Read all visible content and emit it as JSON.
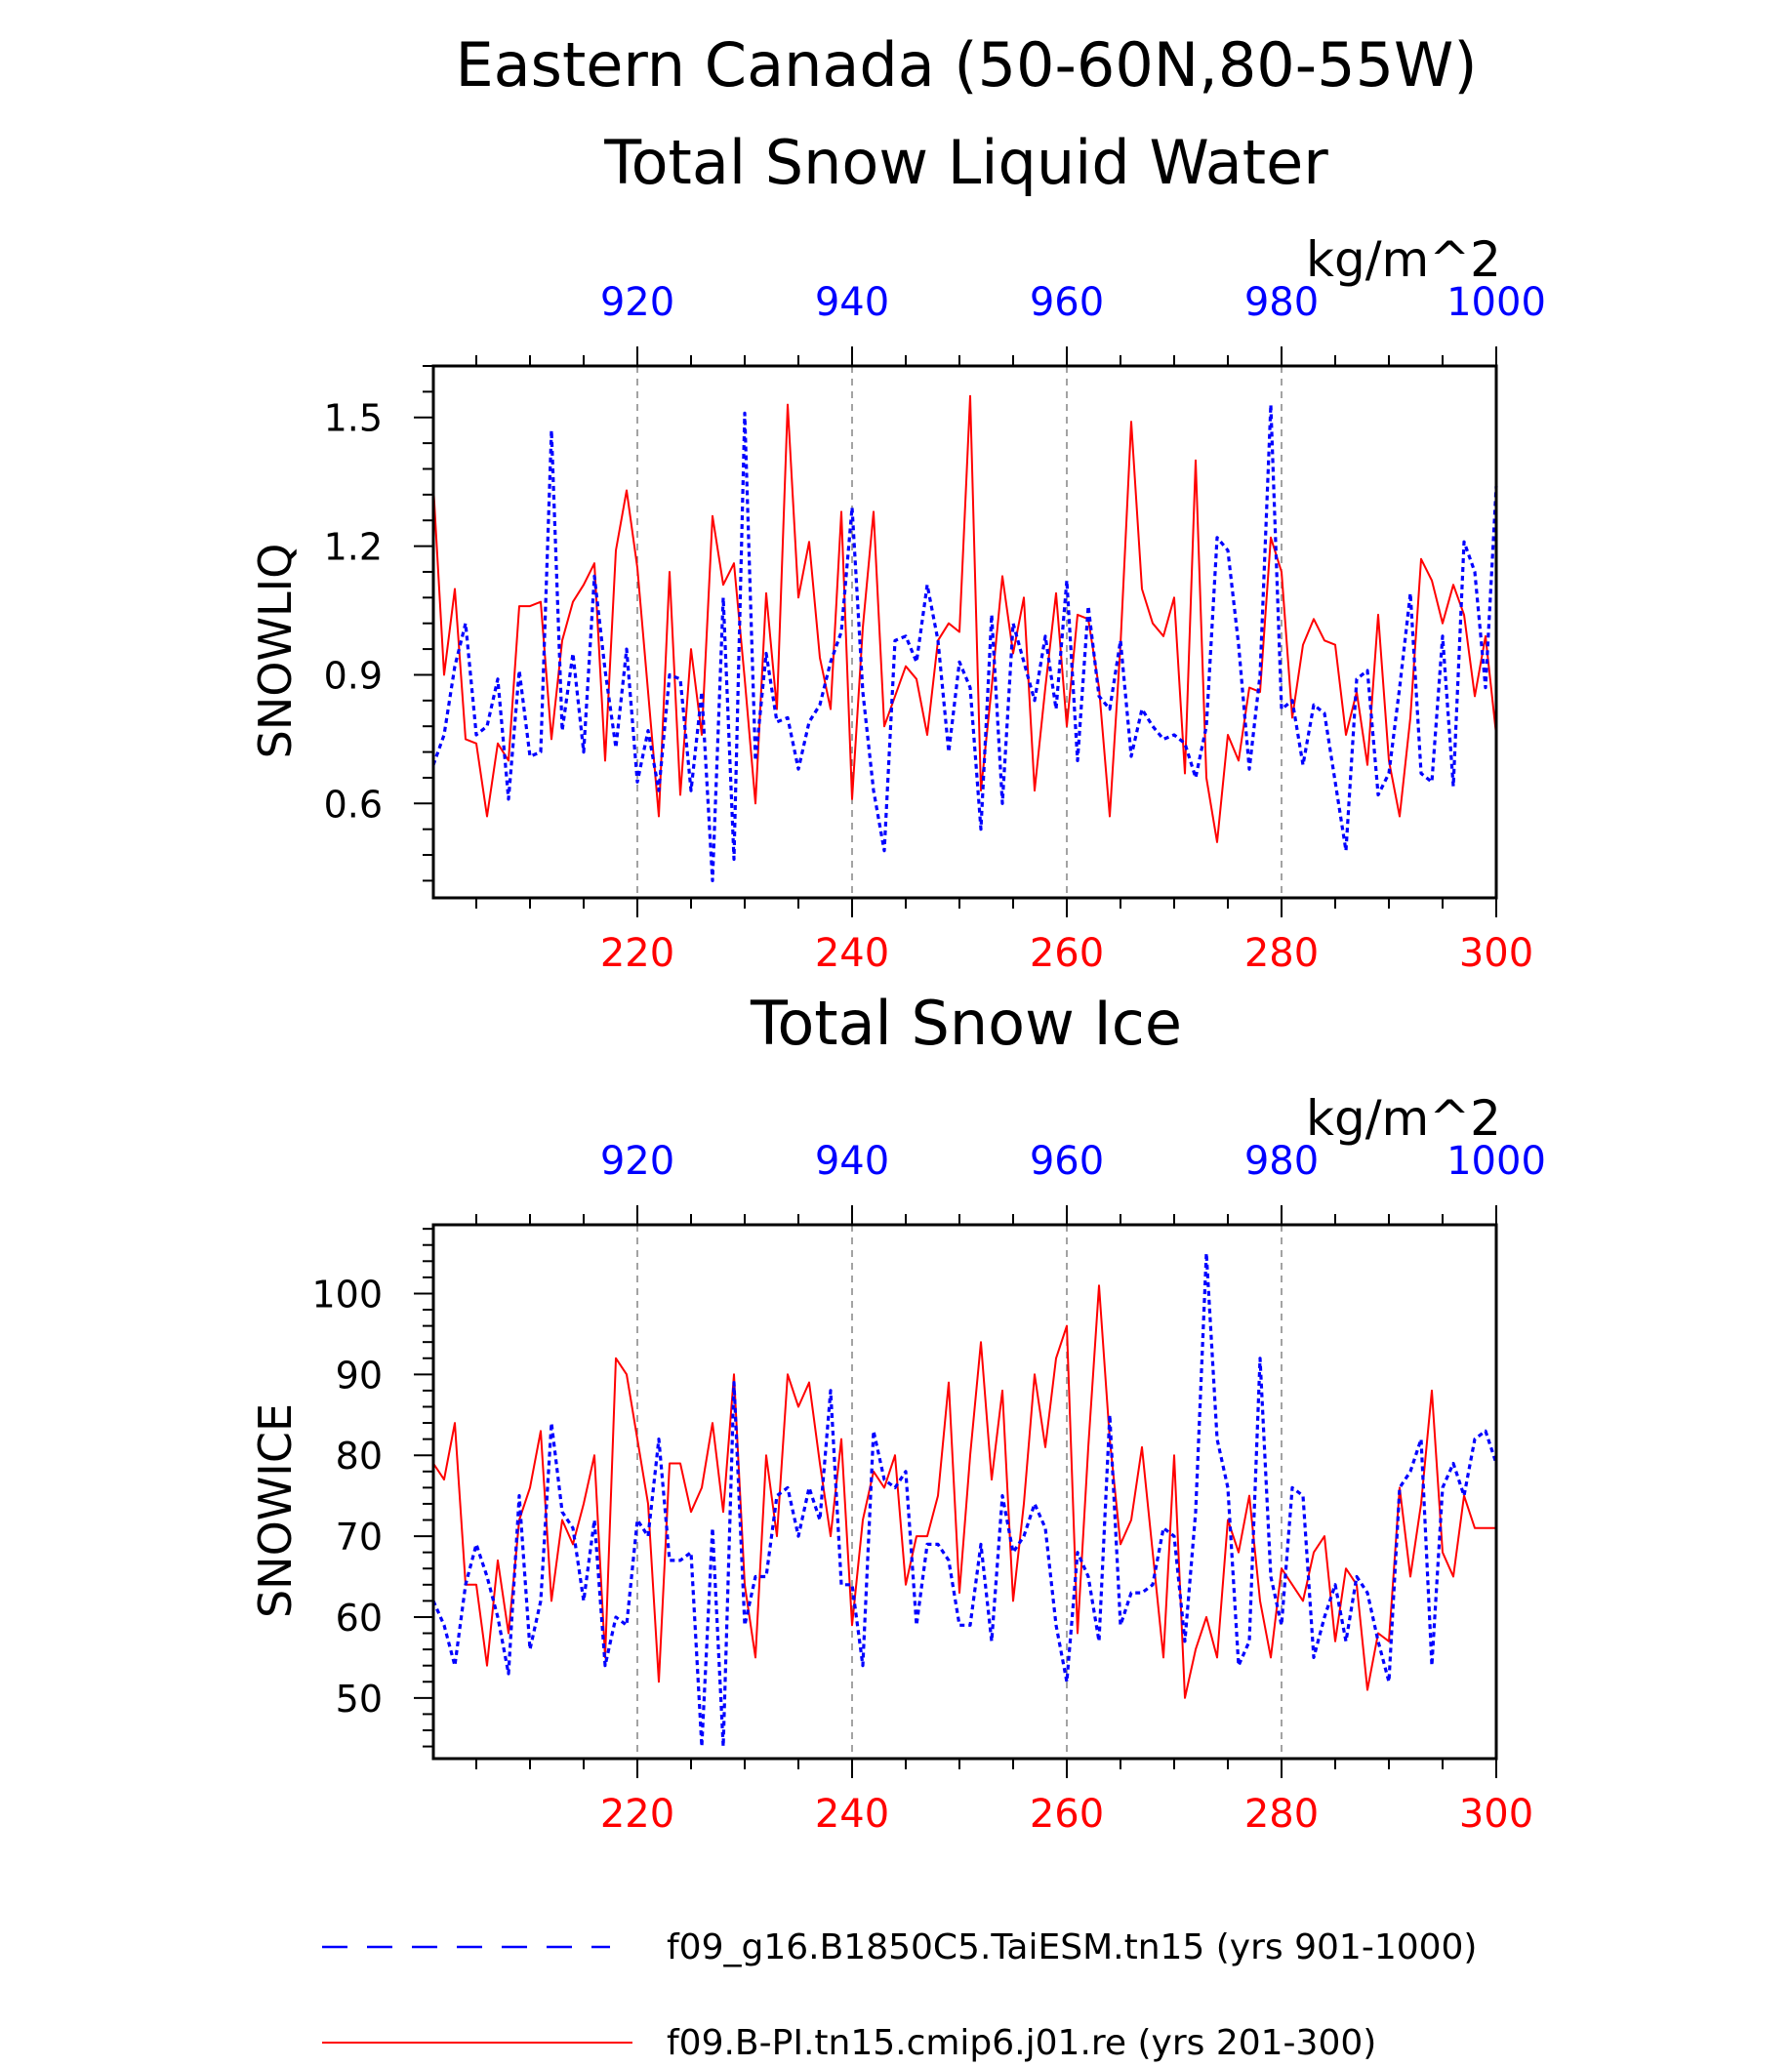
{
  "title_line1": "Eastern Canada (50-60N,80-55W)",
  "colors": {
    "top_axis": "#0000ff",
    "bottom_axis": "#ff0000",
    "frame": "#000000",
    "grid": "#666666"
  },
  "chart_data": [
    {
      "type": "line",
      "title": "Total Snow Liquid Water",
      "units": "kg/m^2",
      "ylabel": "SNOWLIQ",
      "ylim": [
        0.38,
        1.62
      ],
      "yticks": [
        0.6,
        0.9,
        1.2,
        1.5
      ],
      "ytick_labels": [
        "0.6",
        "0.9",
        "1.2",
        "1.5"
      ],
      "bottom_xlim": [
        201,
        300
      ],
      "bottom_xticks": [
        "220",
        "240",
        "260",
        "280",
        "300"
      ],
      "top_xlim": [
        901,
        1000
      ],
      "top_xticks": [
        "920",
        "940",
        "960",
        "980",
        "1000"
      ],
      "grid": "dashed vertical at major ticks",
      "series": [
        {
          "name": "f09.B-PI.tn15.cmip6.j01.re (yrs 201-300)",
          "color": "#ff0000",
          "dash": "solid",
          "x_start": 201,
          "values": [
            1.34,
            0.9,
            1.1,
            0.75,
            0.74,
            0.57,
            0.74,
            0.7,
            1.06,
            1.06,
            1.07,
            0.75,
            0.98,
            1.07,
            1.11,
            1.16,
            0.7,
            1.19,
            1.33,
            1.15,
            0.86,
            0.57,
            1.14,
            0.62,
            0.96,
            0.76,
            1.27,
            1.11,
            1.16,
            0.89,
            0.6,
            1.09,
            0.82,
            1.53,
            1.08,
            1.21,
            0.94,
            0.82,
            1.28,
            0.61,
            1.01,
            1.28,
            0.78,
            0.85,
            0.92,
            0.89,
            0.76,
            0.98,
            1.02,
            1.0,
            1.55,
            0.63,
            0.87,
            1.13,
            0.95,
            1.08,
            0.63,
            0.87,
            1.09,
            0.78,
            1.04,
            1.03,
            0.87,
            0.57,
            0.97,
            1.49,
            1.1,
            1.02,
            0.99,
            1.08,
            0.67,
            1.4,
            0.66,
            0.51,
            0.76,
            0.7,
            0.87,
            0.86,
            1.22,
            1.14,
            0.8,
            0.97,
            1.03,
            0.98,
            0.97,
            0.76,
            0.86,
            0.69,
            1.04,
            0.7,
            0.57,
            0.8,
            1.17,
            1.12,
            1.02,
            1.11,
            1.04,
            0.85,
            0.99,
            0.76
          ]
        },
        {
          "name": "f09_g16.B1850C5.TaiESM.tn15 (yrs 901-1000)",
          "color": "#0000ff",
          "dash": "dashed",
          "x_start": 901,
          "values": [
            0.69,
            0.76,
            0.92,
            1.02,
            0.76,
            0.78,
            0.89,
            0.61,
            0.91,
            0.71,
            0.72,
            1.47,
            0.77,
            0.95,
            0.72,
            1.13,
            0.91,
            0.73,
            0.96,
            0.65,
            0.77,
            0.63,
            0.9,
            0.89,
            0.63,
            0.86,
            0.42,
            1.08,
            0.47,
            1.51,
            0.7,
            0.95,
            0.79,
            0.8,
            0.68,
            0.79,
            0.83,
            0.93,
            1.0,
            1.29,
            0.86,
            0.63,
            0.49,
            0.98,
            0.99,
            0.93,
            1.11,
            0.98,
            0.72,
            0.93,
            0.87,
            0.54,
            1.04,
            0.6,
            1.02,
            0.93,
            0.84,
            0.99,
            0.82,
            1.12,
            0.7,
            1.06,
            0.85,
            0.82,
            0.98,
            0.71,
            0.82,
            0.78,
            0.75,
            0.76,
            0.74,
            0.66,
            0.78,
            1.22,
            1.19,
            0.97,
            0.68,
            0.9,
            1.53,
            0.82,
            0.84,
            0.69,
            0.83,
            0.81,
            0.65,
            0.49,
            0.89,
            0.91,
            0.62,
            0.67,
            0.87,
            1.09,
            0.67,
            0.65,
            0.99,
            0.64,
            1.21,
            1.14,
            0.87,
            1.34
          ]
        }
      ]
    },
    {
      "type": "line",
      "title": "Total Snow Ice",
      "units": "kg/m^2",
      "ylabel": "SNOWICE",
      "ylim": [
        42.5,
        108.5
      ],
      "yticks": [
        50,
        60,
        70,
        80,
        90,
        100
      ],
      "ytick_labels": [
        "50",
        "60",
        "70",
        "80",
        "90",
        "100"
      ],
      "bottom_xlim": [
        201,
        300
      ],
      "bottom_xticks": [
        "220",
        "240",
        "260",
        "280",
        "300"
      ],
      "top_xlim": [
        901,
        1000
      ],
      "top_xticks": [
        "920",
        "940",
        "960",
        "980",
        "1000"
      ],
      "grid": "dashed vertical at major ticks",
      "series": [
        {
          "name": "f09.B-PI.tn15.cmip6.j01.re (yrs 201-300)",
          "color": "#ff0000",
          "dash": "solid",
          "x_start": 201,
          "values": [
            79,
            77,
            84,
            64,
            64,
            54,
            67,
            58,
            72,
            76,
            83,
            62,
            72,
            69,
            74,
            80,
            55,
            92,
            90,
            82,
            74,
            52,
            79,
            79,
            73,
            76,
            84,
            73,
            90,
            64,
            55,
            80,
            70,
            90,
            86,
            89,
            79,
            70,
            82,
            59,
            72,
            78,
            76,
            80,
            64,
            70,
            70,
            75,
            89,
            63,
            80,
            94,
            77,
            88,
            62,
            74,
            90,
            81,
            92,
            96,
            58,
            81,
            101,
            82,
            69,
            72,
            81,
            68,
            55,
            80,
            50,
            56,
            60,
            55,
            72,
            68,
            75,
            62,
            55,
            66,
            64,
            62,
            68,
            70,
            57,
            66,
            64,
            51,
            58,
            57,
            76,
            65,
            74,
            88,
            68,
            65,
            75,
            71,
            71,
            71
          ]
        },
        {
          "name": "f09_g16.B1850C5.TaiESM.tn15 (yrs 901-1000)",
          "color": "#0000ff",
          "dash": "dashed",
          "x_start": 901,
          "values": [
            62,
            59,
            54,
            64,
            69,
            65,
            60,
            53,
            75,
            56,
            62,
            84,
            73,
            71,
            62,
            72,
            54,
            60,
            59,
            72,
            70,
            82,
            67,
            67,
            68,
            44,
            71,
            44,
            89,
            59,
            65,
            65,
            75,
            76,
            70,
            76,
            72,
            88,
            64,
            64,
            54,
            83,
            77,
            76,
            78,
            59,
            69,
            69,
            67,
            59,
            59,
            69,
            57,
            75,
            68,
            70,
            74,
            71,
            59,
            52,
            68,
            65,
            57,
            85,
            59,
            63,
            63,
            64,
            71,
            70,
            57,
            73,
            105,
            82,
            76,
            54,
            57,
            92,
            65,
            59,
            76,
            75,
            55,
            60,
            64,
            57,
            65,
            63,
            57,
            52,
            76,
            78,
            82,
            54,
            76,
            79,
            75,
            82,
            83,
            79
          ]
        }
      ]
    }
  ],
  "legend": [
    {
      "label": "f09_g16.B1850C5.TaiESM.tn15 (yrs 901-1000)",
      "color": "#0000ff",
      "dash": "dashed"
    },
    {
      "label": "f09.B-PI.tn15.cmip6.j01.re (yrs 201-300)",
      "color": "#ff0000",
      "dash": "solid"
    }
  ]
}
